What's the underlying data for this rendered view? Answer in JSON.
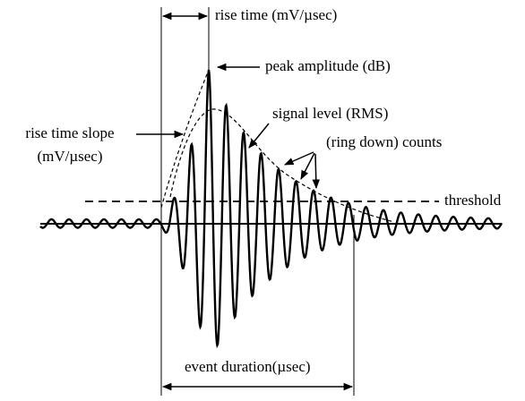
{
  "labels": {
    "rise_time": "rise time (mV/µsec)",
    "peak_amplitude": "peak amplitude (dB)",
    "signal_level": "signal level (RMS)",
    "rise_time_slope_line1": "rise time slope",
    "rise_time_slope_line2": "(mV/µsec)",
    "counts": "(ring down) counts",
    "threshold": "threshold",
    "event_duration": "event duration(µsec)"
  }
}
